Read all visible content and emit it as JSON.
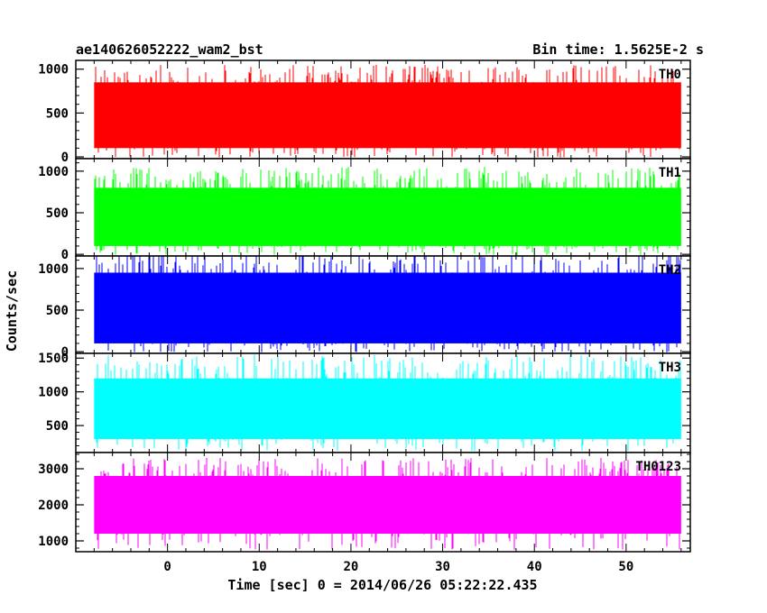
{
  "header": {
    "title": "ae140626052222_wam2_bst",
    "bin_time": "Bin time: 1.5625E-2 s"
  },
  "chart_data": {
    "type": "line",
    "title": "ae140626052222_wam2_bst",
    "subtitle": "Bin time: 1.5625E-2 s",
    "xlabel": "Time [sec] 0 = 2014/06/26 05:22:22.435",
    "ylabel": "Counts/sec",
    "xlim": [
      -10,
      57
    ],
    "x_range_data": [
      -8,
      56
    ],
    "x_ticks": [
      0,
      10,
      20,
      30,
      40,
      50
    ],
    "bin_time_s": 0.015625,
    "grid": false,
    "panels": [
      {
        "label": "TH0",
        "color": "#ff0000",
        "ylim": [
          -20,
          1100
        ],
        "y_ticks": [
          0,
          500,
          1000
        ],
        "typical_range": [
          100,
          850
        ],
        "peak_max": 1050
      },
      {
        "label": "TH1",
        "color": "#00ff00",
        "ylim": [
          -20,
          1150
        ],
        "y_ticks": [
          0,
          500,
          1000
        ],
        "typical_range": [
          100,
          800
        ],
        "peak_max": 1050
      },
      {
        "label": "TH2",
        "color": "#0000ff",
        "ylim": [
          -20,
          1150
        ],
        "y_ticks": [
          0,
          500,
          1000
        ],
        "typical_range": [
          100,
          950
        ],
        "peak_max": 1200
      },
      {
        "label": "TH3",
        "color": "#00ffff",
        "ylim": [
          100,
          1570
        ],
        "y_ticks": [
          500,
          1000,
          1500
        ],
        "typical_range": [
          300,
          1200
        ],
        "peak_max": 1560
      },
      {
        "label": "TH0123",
        "color": "#ff00ff",
        "ylim": [
          700,
          3450
        ],
        "y_ticks": [
          1000,
          2000,
          3000
        ],
        "typical_range": [
          1200,
          2800
        ],
        "peak_max": 3300
      }
    ]
  }
}
